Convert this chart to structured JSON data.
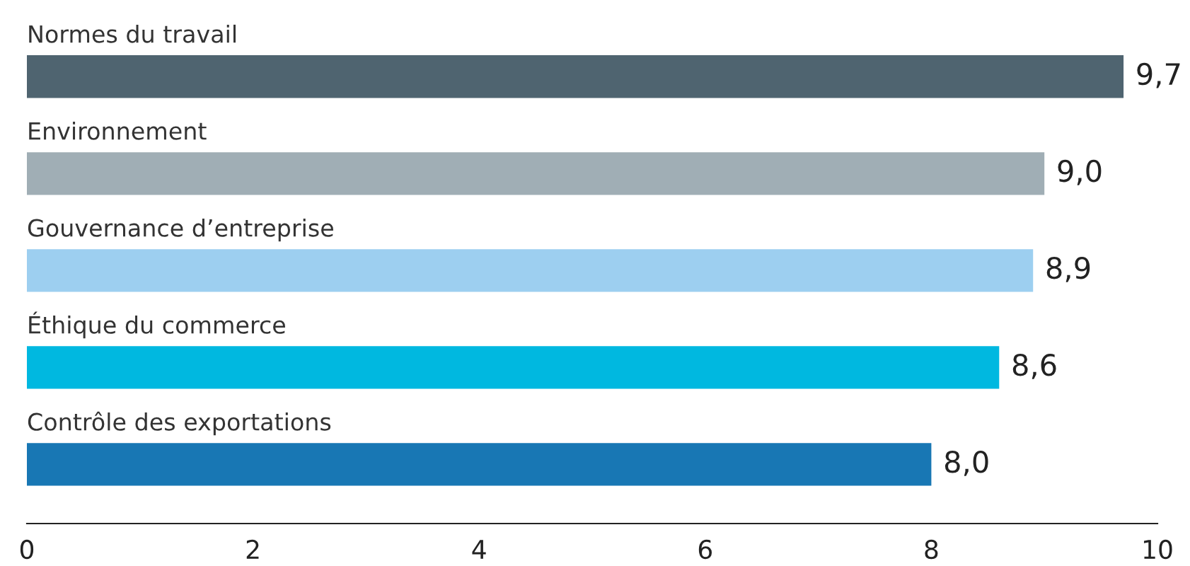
{
  "chart_data": {
    "type": "bar",
    "orientation": "horizontal",
    "categories": [
      "Normes du travail",
      "Environnement",
      "Gouvernance d’entreprise",
      "Éthique du commerce",
      "Contrôle des exportations"
    ],
    "values": [
      9.7,
      9.0,
      8.9,
      8.6,
      8.0
    ],
    "colors": [
      "#4f6470",
      "#a0aeb5",
      "#9dcff0",
      "#00b8e0",
      "#1877b4"
    ],
    "value_labels": [
      "9,7",
      "9,0",
      "8,9",
      "8,6",
      "8,0"
    ],
    "xlim": [
      0,
      10
    ],
    "xticks": [
      0,
      2,
      4,
      6,
      8,
      10
    ],
    "grid": false,
    "legend": false
  }
}
